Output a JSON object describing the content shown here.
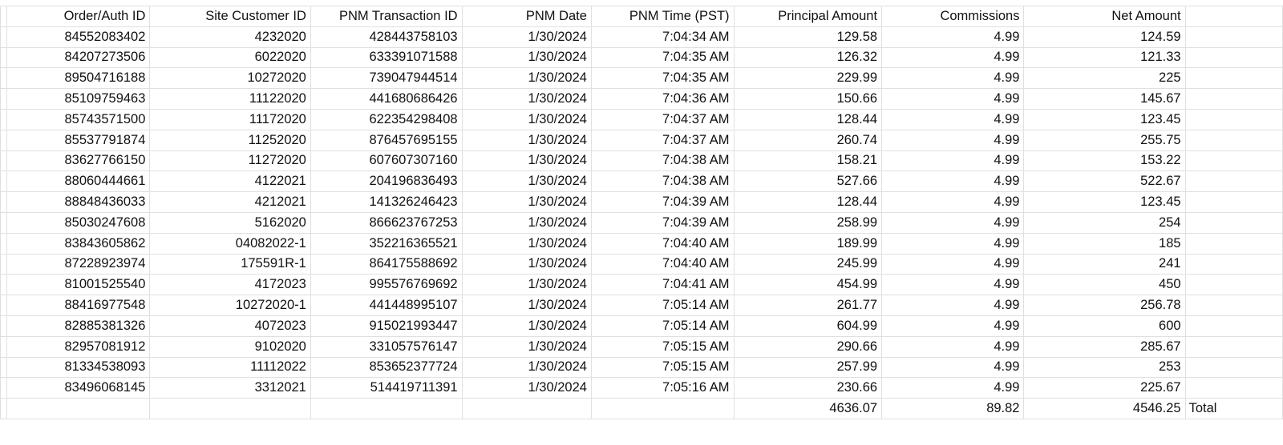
{
  "columns": [
    "Order/Auth ID",
    "Site Customer ID",
    "PNM Transaction ID",
    "PNM Date",
    "PNM Time (PST)",
    "Principal Amount",
    "Commissions",
    "Net Amount"
  ],
  "rows": [
    [
      "84552083402",
      "4232020",
      "428443758103",
      "1/30/2024",
      "7:04:34 AM",
      "129.58",
      "4.99",
      "124.59"
    ],
    [
      "84207273506",
      "6022020",
      "633391071588",
      "1/30/2024",
      "7:04:35 AM",
      "126.32",
      "4.99",
      "121.33"
    ],
    [
      "89504716188",
      "10272020",
      "739047944514",
      "1/30/2024",
      "7:04:35 AM",
      "229.99",
      "4.99",
      "225"
    ],
    [
      "85109759463",
      "11122020",
      "441680686426",
      "1/30/2024",
      "7:04:36 AM",
      "150.66",
      "4.99",
      "145.67"
    ],
    [
      "85743571500",
      "11172020",
      "622354298408",
      "1/30/2024",
      "7:04:37 AM",
      "128.44",
      "4.99",
      "123.45"
    ],
    [
      "85537791874",
      "11252020",
      "876457695155",
      "1/30/2024",
      "7:04:37 AM",
      "260.74",
      "4.99",
      "255.75"
    ],
    [
      "83627766150",
      "11272020",
      "607607307160",
      "1/30/2024",
      "7:04:38 AM",
      "158.21",
      "4.99",
      "153.22"
    ],
    [
      "88060444661",
      "4122021",
      "204196836493",
      "1/30/2024",
      "7:04:38 AM",
      "527.66",
      "4.99",
      "522.67"
    ],
    [
      "88848436033",
      "4212021",
      "141326246423",
      "1/30/2024",
      "7:04:39 AM",
      "128.44",
      "4.99",
      "123.45"
    ],
    [
      "85030247608",
      "5162020",
      "866623767253",
      "1/30/2024",
      "7:04:39 AM",
      "258.99",
      "4.99",
      "254"
    ],
    [
      "83843605862",
      "04082022-1",
      "352216365521",
      "1/30/2024",
      "7:04:40 AM",
      "189.99",
      "4.99",
      "185"
    ],
    [
      "87228923974",
      "175591R-1",
      "864175588692",
      "1/30/2024",
      "7:04:40 AM",
      "245.99",
      "4.99",
      "241"
    ],
    [
      "81001525540",
      "4172023",
      "995576769692",
      "1/30/2024",
      "7:04:41 AM",
      "454.99",
      "4.99",
      "450"
    ],
    [
      "88416977548",
      "10272020-1",
      "441448995107",
      "1/30/2024",
      "7:05:14 AM",
      "261.77",
      "4.99",
      "256.78"
    ],
    [
      "82885381326",
      "4072023",
      "915021993447",
      "1/30/2024",
      "7:05:14 AM",
      "604.99",
      "4.99",
      "600"
    ],
    [
      "82957081912",
      "9102020",
      "331057576147",
      "1/30/2024",
      "7:05:15 AM",
      "290.66",
      "4.99",
      "285.67"
    ],
    [
      "81334538093",
      "11112022",
      "853652377724",
      "1/30/2024",
      "7:05:15 AM",
      "257.99",
      "4.99",
      "253"
    ],
    [
      "83496068145",
      "3312021",
      "514419711391",
      "1/30/2024",
      "7:05:16 AM",
      "230.66",
      "4.99",
      "225.67"
    ]
  ],
  "totals": {
    "principal": "4636.07",
    "commissions": "89.82",
    "net": "4546.25",
    "label": "Total"
  }
}
